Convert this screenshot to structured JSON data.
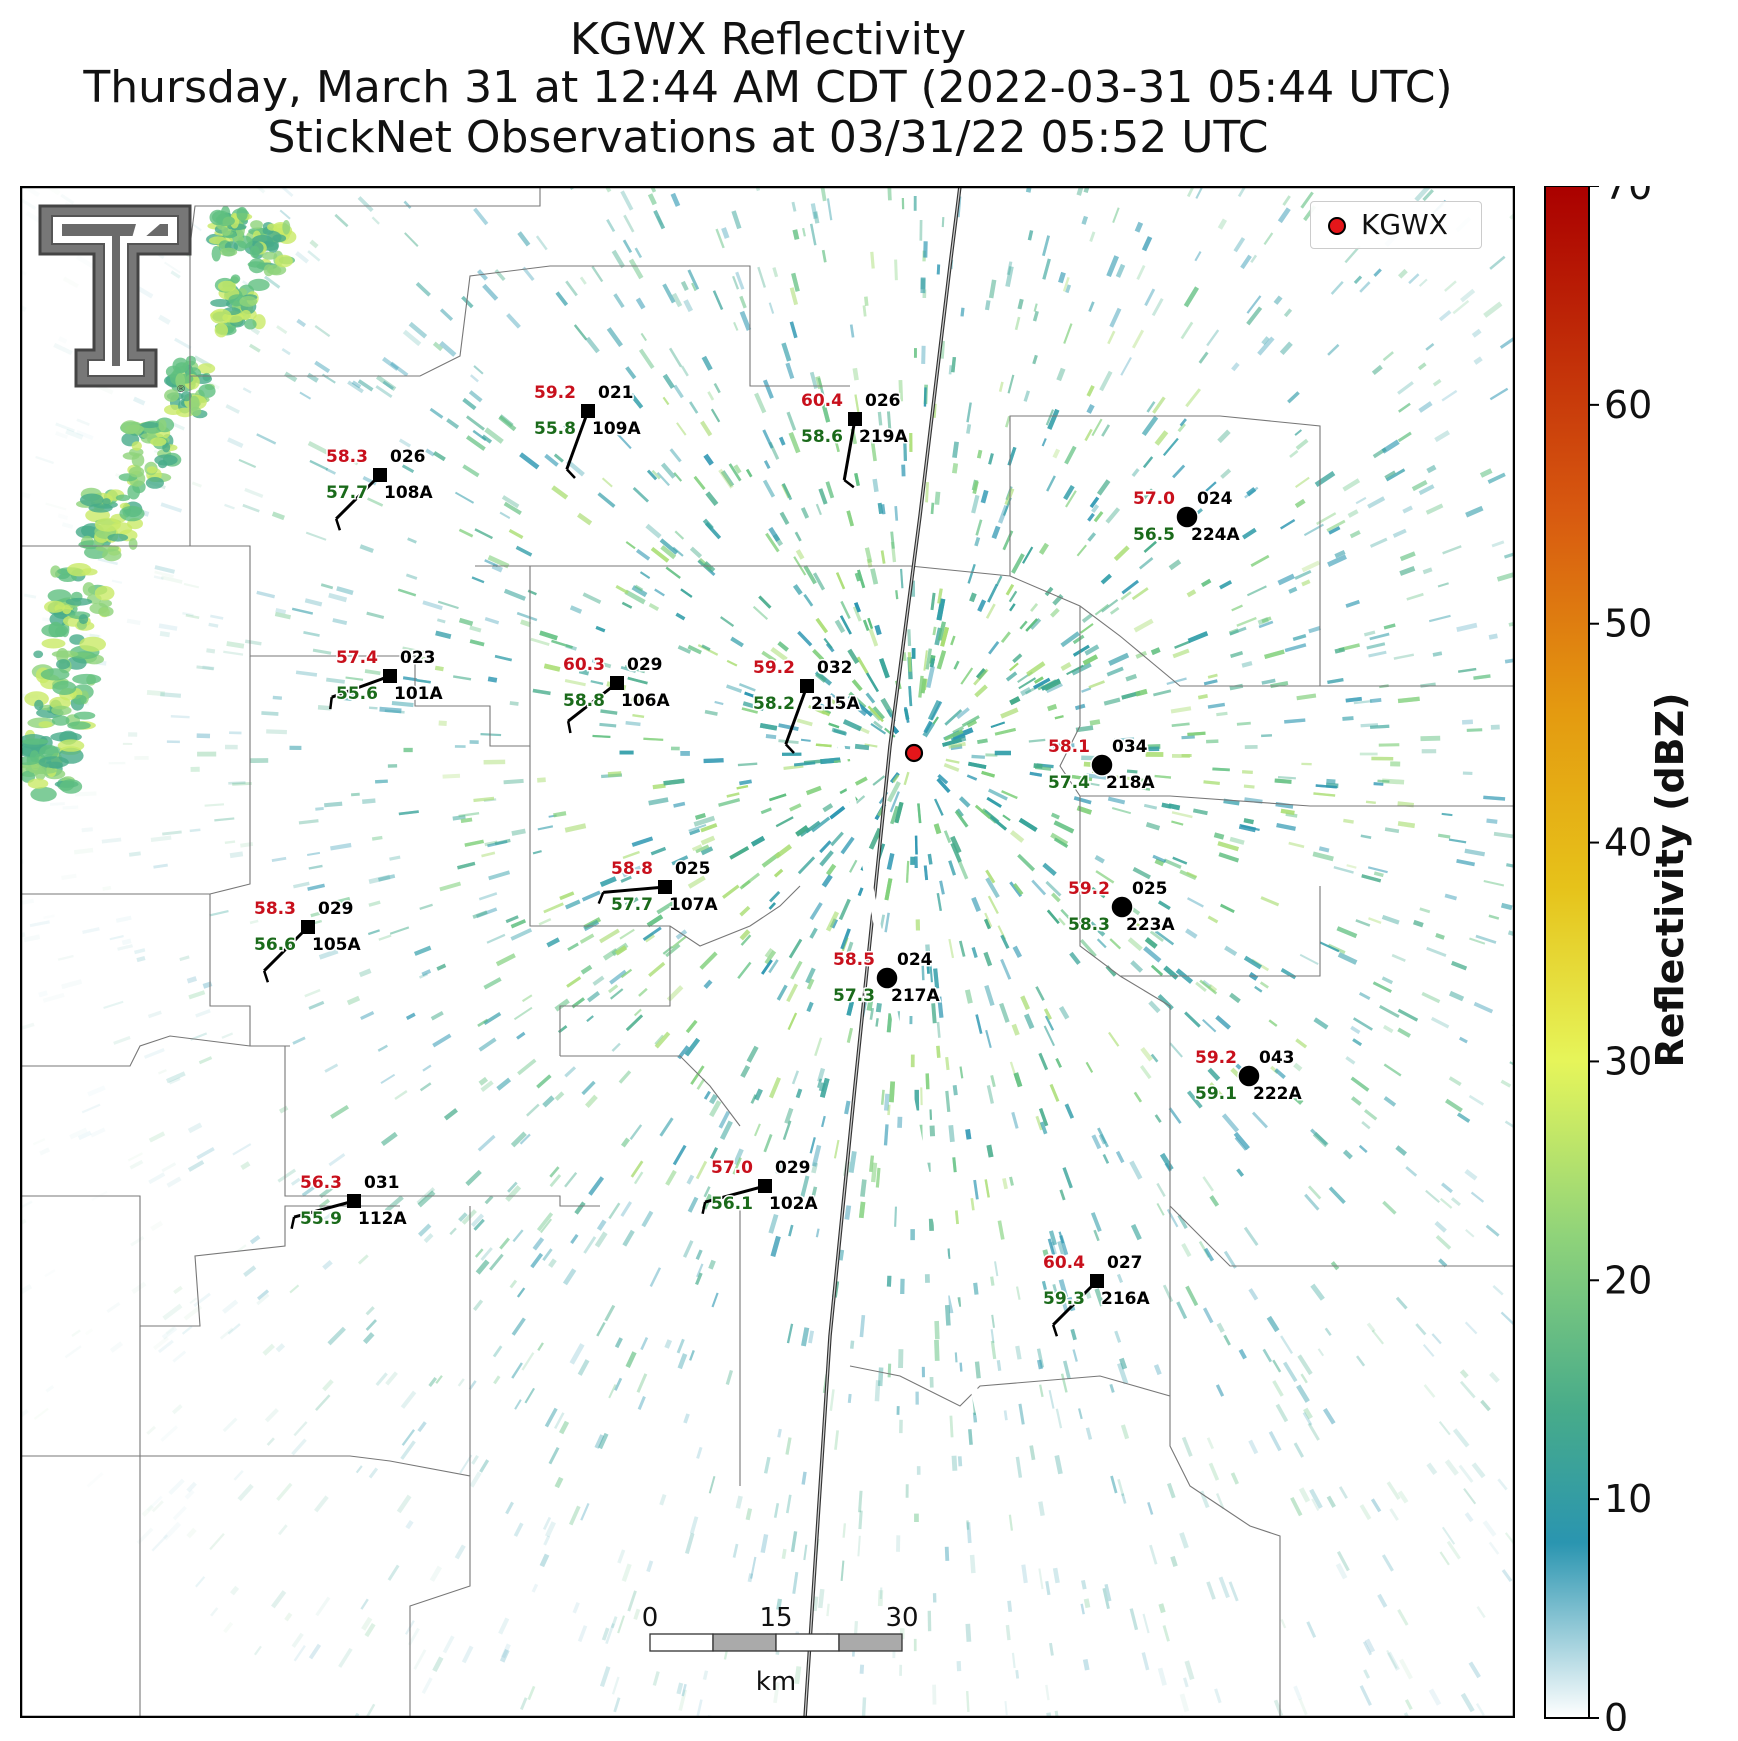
{
  "header": {
    "title_line1": "KGWX Reflectivity",
    "title_line2": "Thursday, March 31 at 12:44 AM CDT (2022-03-31 05:44 UTC)",
    "title_line3": "StickNet Observations at 03/31/22 05:52 UTC"
  },
  "legend": {
    "label": "KGWX",
    "marker_color": "#e4161a"
  },
  "colorbar": {
    "label": "Reflectivity (dBZ)",
    "ticks": [
      "0",
      "10",
      "20",
      "30",
      "40",
      "50",
      "60",
      "70"
    ],
    "range": [
      0,
      70
    ],
    "stops": [
      {
        "v": 0,
        "c": "#ffffff"
      },
      {
        "v": 8,
        "c": "#2a95b0"
      },
      {
        "v": 14,
        "c": "#47ab8a"
      },
      {
        "v": 22,
        "c": "#8fd37a"
      },
      {
        "v": 30,
        "c": "#e6f55a"
      },
      {
        "v": 38,
        "c": "#e6c21a"
      },
      {
        "v": 46,
        "c": "#e49a10"
      },
      {
        "v": 55,
        "c": "#d85a10"
      },
      {
        "v": 70,
        "c": "#aa0000"
      }
    ]
  },
  "scalebar": {
    "ticks": [
      "0",
      "15",
      "30"
    ],
    "unit": "km"
  },
  "logo": {
    "name": "Texas Tech Double T",
    "registered": "®"
  },
  "colors": {
    "temperature": "#c8101c",
    "dewpoint": "#1a6a1a",
    "station": "#000000"
  },
  "radar_site": {
    "name": "KGWX",
    "color": "#e4161a"
  },
  "stations": [
    {
      "id": "109A",
      "temp": "59.2",
      "dew": "55.8",
      "dir": "021",
      "marker": "square"
    },
    {
      "id": "219A",
      "temp": "60.4",
      "dew": "58.6",
      "dir": "026",
      "marker": "square"
    },
    {
      "id": "108A",
      "temp": "58.3",
      "dew": "57.7",
      "dir": "026",
      "marker": "square"
    },
    {
      "id": "224A",
      "temp": "57.0",
      "dew": "56.5",
      "dir": "024",
      "marker": "circle"
    },
    {
      "id": "101A",
      "temp": "57.4",
      "dew": "55.6",
      "dir": "023",
      "marker": "square"
    },
    {
      "id": "106A",
      "temp": "60.3",
      "dew": "58.8",
      "dir": "029",
      "marker": "square"
    },
    {
      "id": "215A",
      "temp": "59.2",
      "dew": "58.2",
      "dir": "032",
      "marker": "square"
    },
    {
      "id": "218A",
      "temp": "58.1",
      "dew": "57.4",
      "dir": "034",
      "marker": "circle"
    },
    {
      "id": "107A",
      "temp": "58.8",
      "dew": "57.7",
      "dir": "025",
      "marker": "square"
    },
    {
      "id": "223A",
      "temp": "59.2",
      "dew": "58.3",
      "dir": "025",
      "marker": "circle"
    },
    {
      "id": "105A",
      "temp": "58.3",
      "dew": "56.6",
      "dir": "029",
      "marker": "square"
    },
    {
      "id": "217A",
      "temp": "58.5",
      "dew": "57.3",
      "dir": "024",
      "marker": "circle"
    },
    {
      "id": "222A",
      "temp": "59.2",
      "dew": "59.1",
      "dir": "043",
      "marker": "circle"
    },
    {
      "id": "112A",
      "temp": "56.3",
      "dew": "55.9",
      "dir": "031",
      "marker": "square"
    },
    {
      "id": "102A",
      "temp": "57.0",
      "dew": "56.1",
      "dir": "029",
      "marker": "square"
    },
    {
      "id": "216A",
      "temp": "60.4",
      "dew": "59.3",
      "dir": "027",
      "marker": "square"
    }
  ]
}
